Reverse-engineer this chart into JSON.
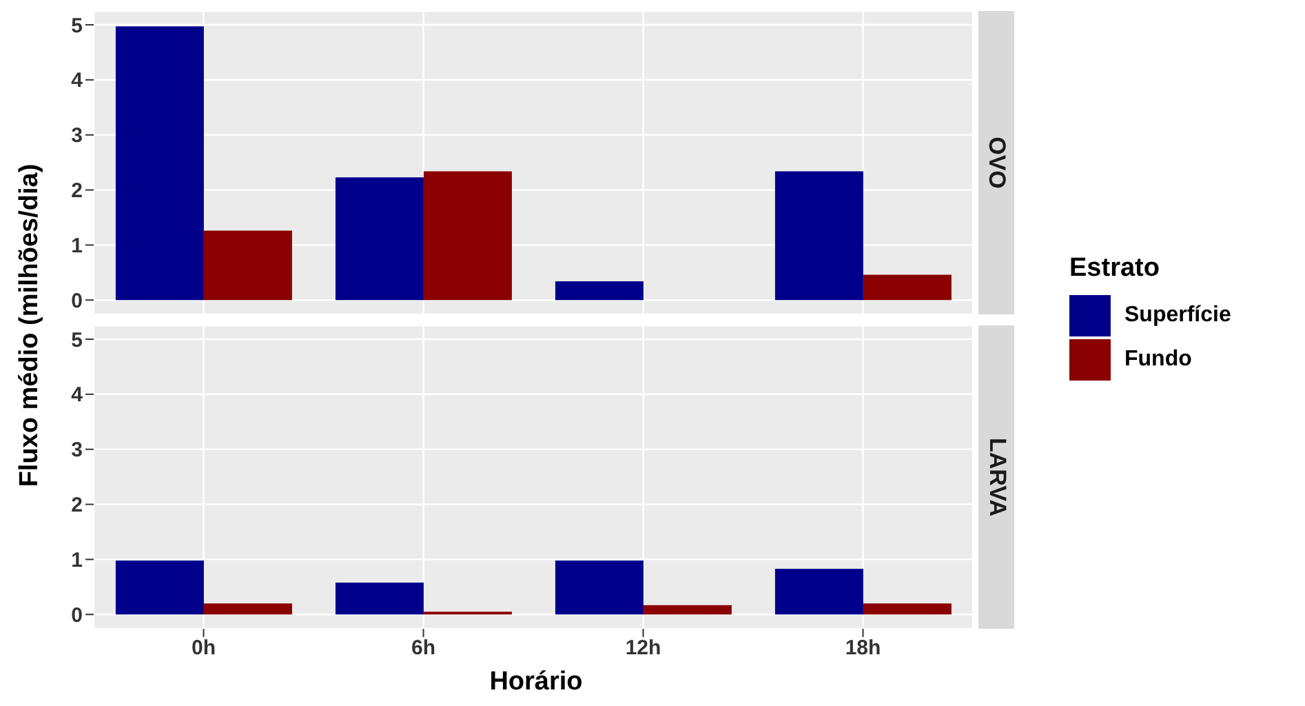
{
  "chart_data": [
    {
      "type": "bar",
      "title": "OVO",
      "ylabel": "Fluxo médio (milhões/dia)",
      "legend_title": "Estrato",
      "legend": "right",
      "categories": [
        null,
        null,
        null,
        null
      ],
      "series": [
        {
          "name": "Superfície",
          "color": "#00008b",
          "values": [
            4.97,
            2.23,
            0.34,
            2.34
          ]
        },
        {
          "name": "Fundo",
          "color": "#8b0000",
          "values": [
            1.26,
            2.34,
            0,
            0.46
          ]
        }
      ],
      "ylim": [
        -0.26,
        5.25
      ],
      "yticks": [
        0,
        1,
        2,
        3,
        4,
        5
      ],
      "grid": true,
      "tick_labels": "y"
    },
    {
      "type": "bar",
      "title": "LARVA",
      "xlabel": "Horário",
      "categories": [
        "0h",
        "6h",
        "12h",
        "18h"
      ],
      "series": [
        {
          "color": "#00008b",
          "values": [
            0.98,
            0.58,
            0.98,
            0.83
          ]
        },
        {
          "color": "#8b0000",
          "values": [
            0.2,
            0.05,
            0.17,
            0.2
          ]
        }
      ],
      "ylim": [
        -0.26,
        5.25
      ],
      "yticks": [
        0,
        1,
        2,
        3,
        4,
        5
      ],
      "grid": true
    }
  ]
}
